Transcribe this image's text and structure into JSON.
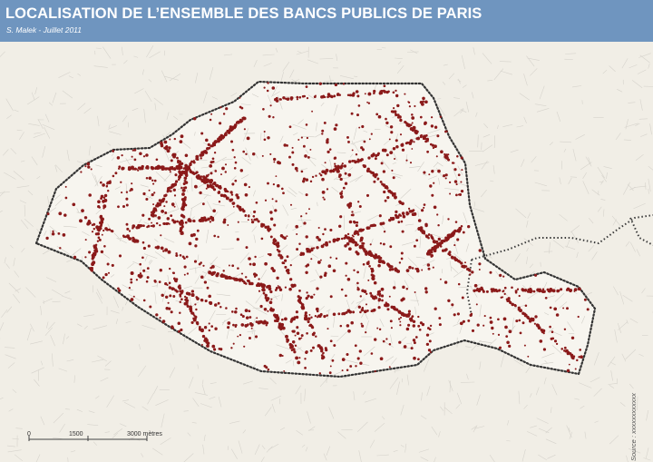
{
  "header": {
    "title": "LOCALISATION DE L’ENSEMBLE DES BANCS PUBLICS DE PARIS",
    "subtitle": "S. Malek - Juillet 2011"
  },
  "map": {
    "feature": "public-benches",
    "colors": {
      "background": "#f1eee6",
      "header": "#6f95bf",
      "paris_fill": "#f7f5ef",
      "streets": "#c8c6c0",
      "boundary": "#3a3a3a",
      "bench_points": "#8b1a1a"
    }
  },
  "scale_bar": {
    "labels": [
      "0",
      "1500",
      "3000 mètres"
    ]
  },
  "source": "Source : xxxxxxxxxxxx"
}
